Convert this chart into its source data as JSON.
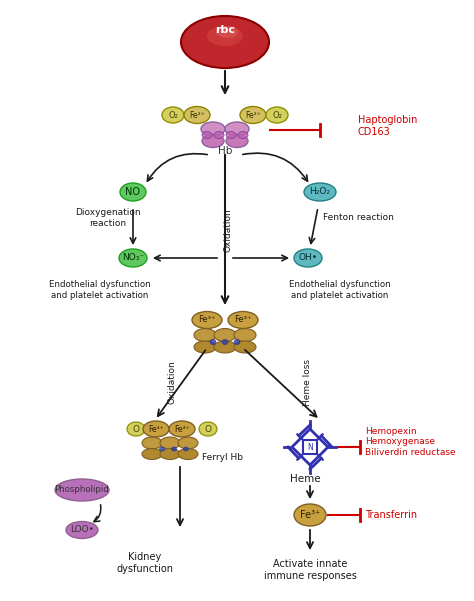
{
  "bg_color": "#ffffff",
  "rbc_color": "#c0272d",
  "rbc_label": "rbc",
  "hb_color": "#d4a0c8",
  "hb_label": "Hb",
  "fe2_color": "#d4c060",
  "fe2_label": "Fe²⁺",
  "fe3_color": "#c8a040",
  "fe3_label": "Fe³⁺",
  "fe4_label": "Fe⁴⁺",
  "o2_color": "#d4d060",
  "o2_label": "O₂",
  "no_color": "#60c860",
  "no_label": "NO",
  "no3_label": "NO₃⁻",
  "h2o2_color": "#60b8c0",
  "h2o2_label": "H₂O₂",
  "oh_label": "OH•",
  "heme_color": "#3030b0",
  "phospholipid_color": "#b870b8",
  "phospholipid_label": "Phospholipid",
  "loo_label": "LOO•",
  "red_color": "#cc0000",
  "arrow_color": "#1a1a1a",
  "text_color": "#1a1a1a",
  "oxidation_label": "Oxidation",
  "heme_loss_label": "Heme loss",
  "haptoglobin_label": "Haptoglobin\nCD163",
  "hemopexin_label": "Hemopexin\nHemoxygenase\nBiliverdin reductase",
  "transferrin_label": "Transferrin",
  "dioxygenation_label": "Dioxygenation\nreaction",
  "fenton_label": "Fenton reaction",
  "endothelial1_label": "Endothelial dysfunction\nand platelet activation",
  "endothelial2_label": "Endothelial dysfunction\nand platelet activation",
  "ferryl_label": "Ferryl Hb",
  "kidney_label": "Kidney\ndysfunction",
  "innate_label": "Activate innate\nimmune responses",
  "heme_label": "Heme",
  "fe3b_color": "#c8a040"
}
